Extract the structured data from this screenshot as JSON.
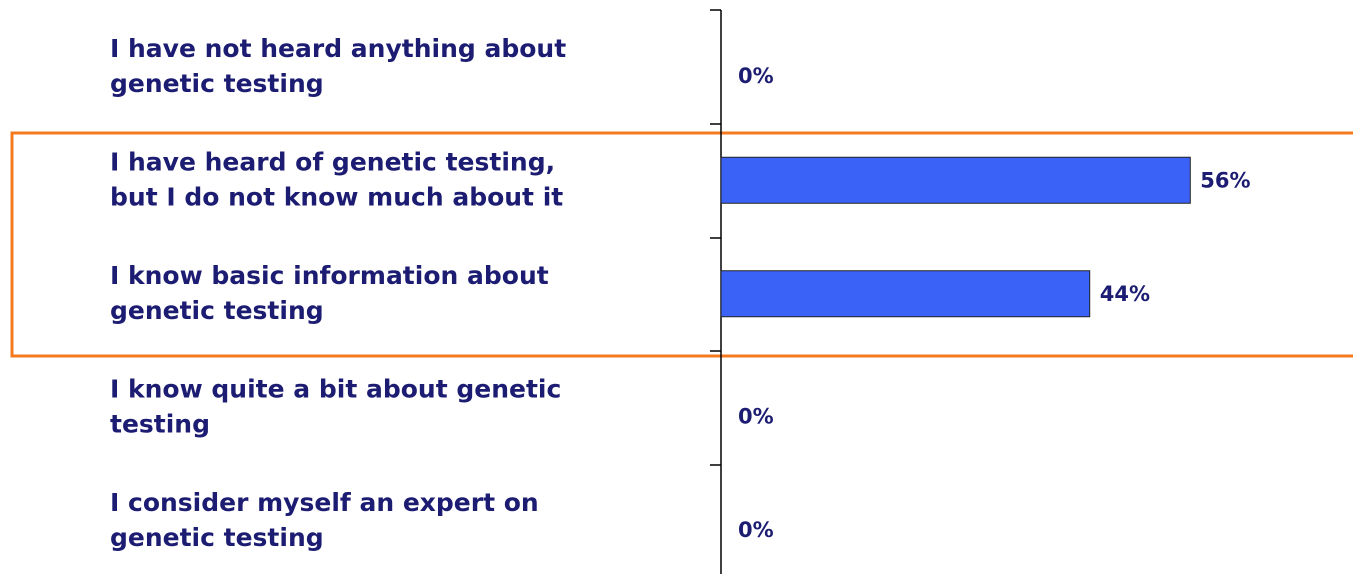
{
  "chart_data": {
    "type": "bar",
    "orientation": "horizontal",
    "categories": [
      [
        "I have not heard anything about",
        "genetic testing"
      ],
      [
        "I have heard of genetic testing,",
        "but I do not know much about it"
      ],
      [
        "I know basic information about",
        "genetic testing"
      ],
      [
        "I know quite a bit about genetic",
        "testing"
      ],
      [
        "I consider myself an expert on",
        "genetic testing"
      ]
    ],
    "values": [
      0,
      56,
      44,
      0,
      0
    ],
    "value_labels": [
      "0%",
      "56%",
      "44%",
      "0%",
      "0%"
    ],
    "color": "#3b62f6"
  }
}
